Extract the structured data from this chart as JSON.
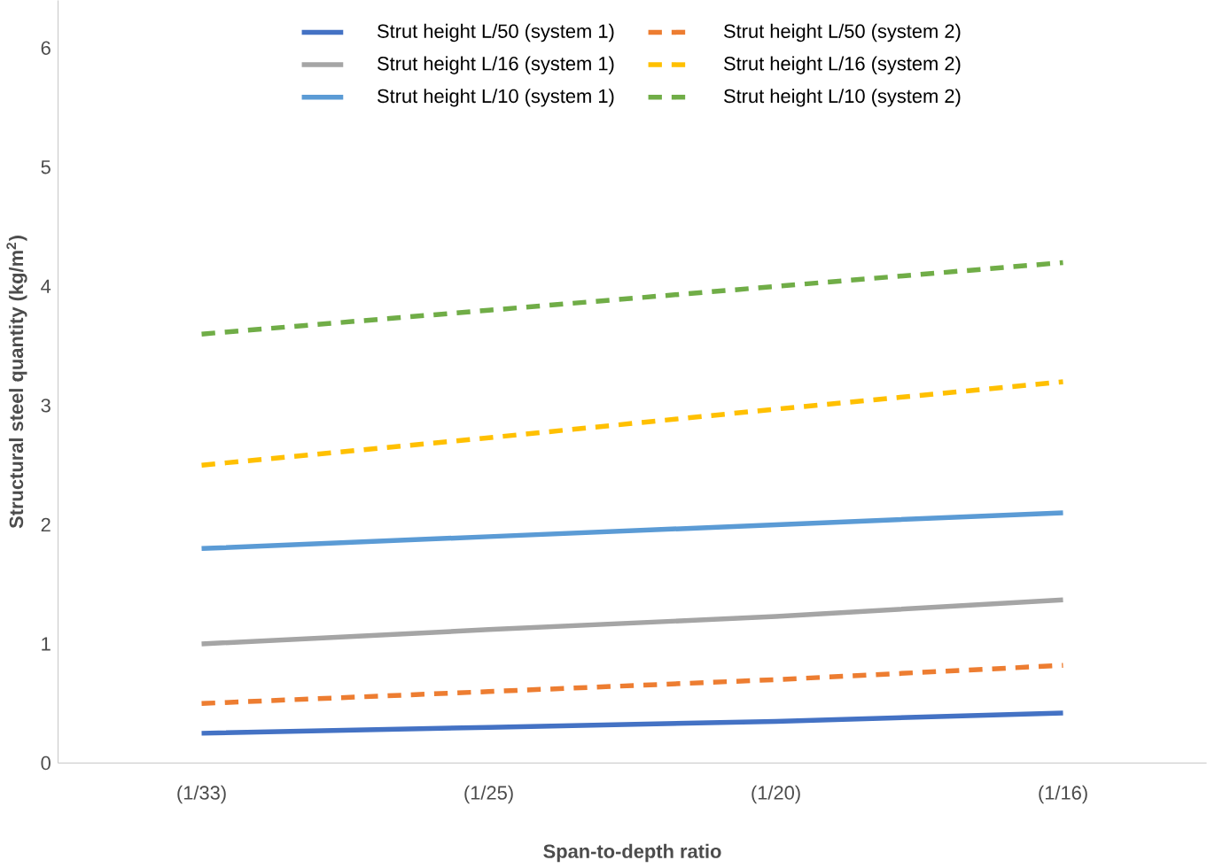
{
  "chart_data": {
    "type": "line",
    "xlabel": "Span-to-depth ratio",
    "ylabel": "Structural steel quantity (kg/m$^{2}$)",
    "categories": [
      "(1/33)",
      "(1/25)",
      "(1/20)",
      "(1/16)"
    ],
    "ylim": [
      0,
      6.4
    ],
    "yticks": [
      0,
      1,
      2,
      3,
      4,
      5,
      6
    ],
    "grid": false,
    "legend": "top",
    "marker": "none",
    "series": [
      {
        "name": "Strut height L/50 (system 1)",
        "color": "#4472c4",
        "line_style": "solid",
        "values": [
          0.25,
          0.3,
          0.35,
          0.42
        ]
      },
      {
        "name": "Strut height L/50 (system 2)",
        "color": "#ed7d31",
        "line_style": "dashed",
        "values": [
          0.5,
          0.6,
          0.7,
          0.82
        ]
      },
      {
        "name": "Strut height L/16 (system 1)",
        "color": "#a5a5a5",
        "line_style": "solid",
        "values": [
          1.0,
          1.12,
          1.23,
          1.37
        ]
      },
      {
        "name": "Strut height L/16 (system 2)",
        "color": "#ffc000",
        "line_style": "dashed",
        "values": [
          2.5,
          2.73,
          2.97,
          3.2
        ]
      },
      {
        "name": "Strut height L/10 (system 1)",
        "color": "#5b9bd5",
        "line_style": "solid",
        "values": [
          1.8,
          1.9,
          2.0,
          2.1
        ]
      },
      {
        "name": "Strut height L/10 (system 2)",
        "color": "#70ad47",
        "line_style": "dashed",
        "values": [
          3.6,
          3.8,
          4.0,
          4.2
        ]
      }
    ]
  }
}
